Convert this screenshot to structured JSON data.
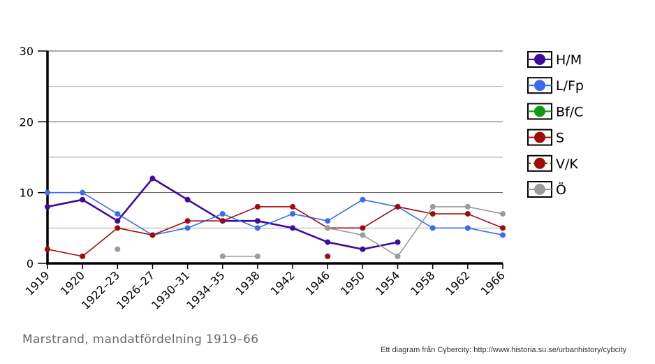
{
  "chart_data": {
    "type": "line",
    "title": "",
    "xlabel": "",
    "ylabel": "",
    "categories": [
      "1919",
      "1920",
      "1922–23",
      "1926–27",
      "1930–31",
      "1934–35",
      "1938",
      "1942",
      "1946",
      "1950",
      "1954",
      "1958",
      "1962",
      "1966"
    ],
    "y_ticks": [
      "0",
      "10",
      "20",
      "30"
    ],
    "ylim": [
      0,
      30
    ],
    "grid": true,
    "legend_position": "right",
    "series": [
      {
        "name": "H/M",
        "color": "#3d0b9e",
        "stroke": 2.6,
        "values": [
          8,
          9,
          6,
          12,
          9,
          6,
          6,
          5,
          3,
          2,
          3,
          null,
          null,
          null
        ]
      },
      {
        "name": "L/Fp",
        "color": "#3a6cf0",
        "stroke": 1.6,
        "values": [
          10,
          10,
          7,
          4,
          5,
          7,
          5,
          7,
          6,
          9,
          8,
          5,
          5,
          4
        ]
      },
      {
        "name": "Bf/C",
        "color": "#109c10",
        "stroke": 1.6,
        "values": [
          null,
          null,
          null,
          null,
          null,
          null,
          null,
          null,
          null,
          null,
          null,
          null,
          null,
          null
        ]
      },
      {
        "name": "S",
        "color": "#a20a0a",
        "stroke": 1.6,
        "values": [
          2,
          1,
          5,
          4,
          6,
          6,
          8,
          8,
          5,
          5,
          8,
          7,
          7,
          5
        ]
      },
      {
        "name": "V/K",
        "color": "#a20a0a",
        "stroke": 1.6,
        "dashed": true,
        "values": [
          null,
          null,
          null,
          null,
          null,
          null,
          null,
          null,
          1,
          null,
          null,
          null,
          null,
          null
        ]
      },
      {
        "name": "Ö",
        "color": "#9b9b9b",
        "stroke": 1.6,
        "values": [
          null,
          null,
          2,
          null,
          null,
          1,
          1,
          null,
          5,
          4,
          1,
          8,
          8,
          7
        ]
      }
    ]
  },
  "caption": "Marstrand, mandatfördelning 1919–66",
  "credit": "Ett diagram från Cybercity: http://www.historia.su.se/urbanhistory/cybcity"
}
